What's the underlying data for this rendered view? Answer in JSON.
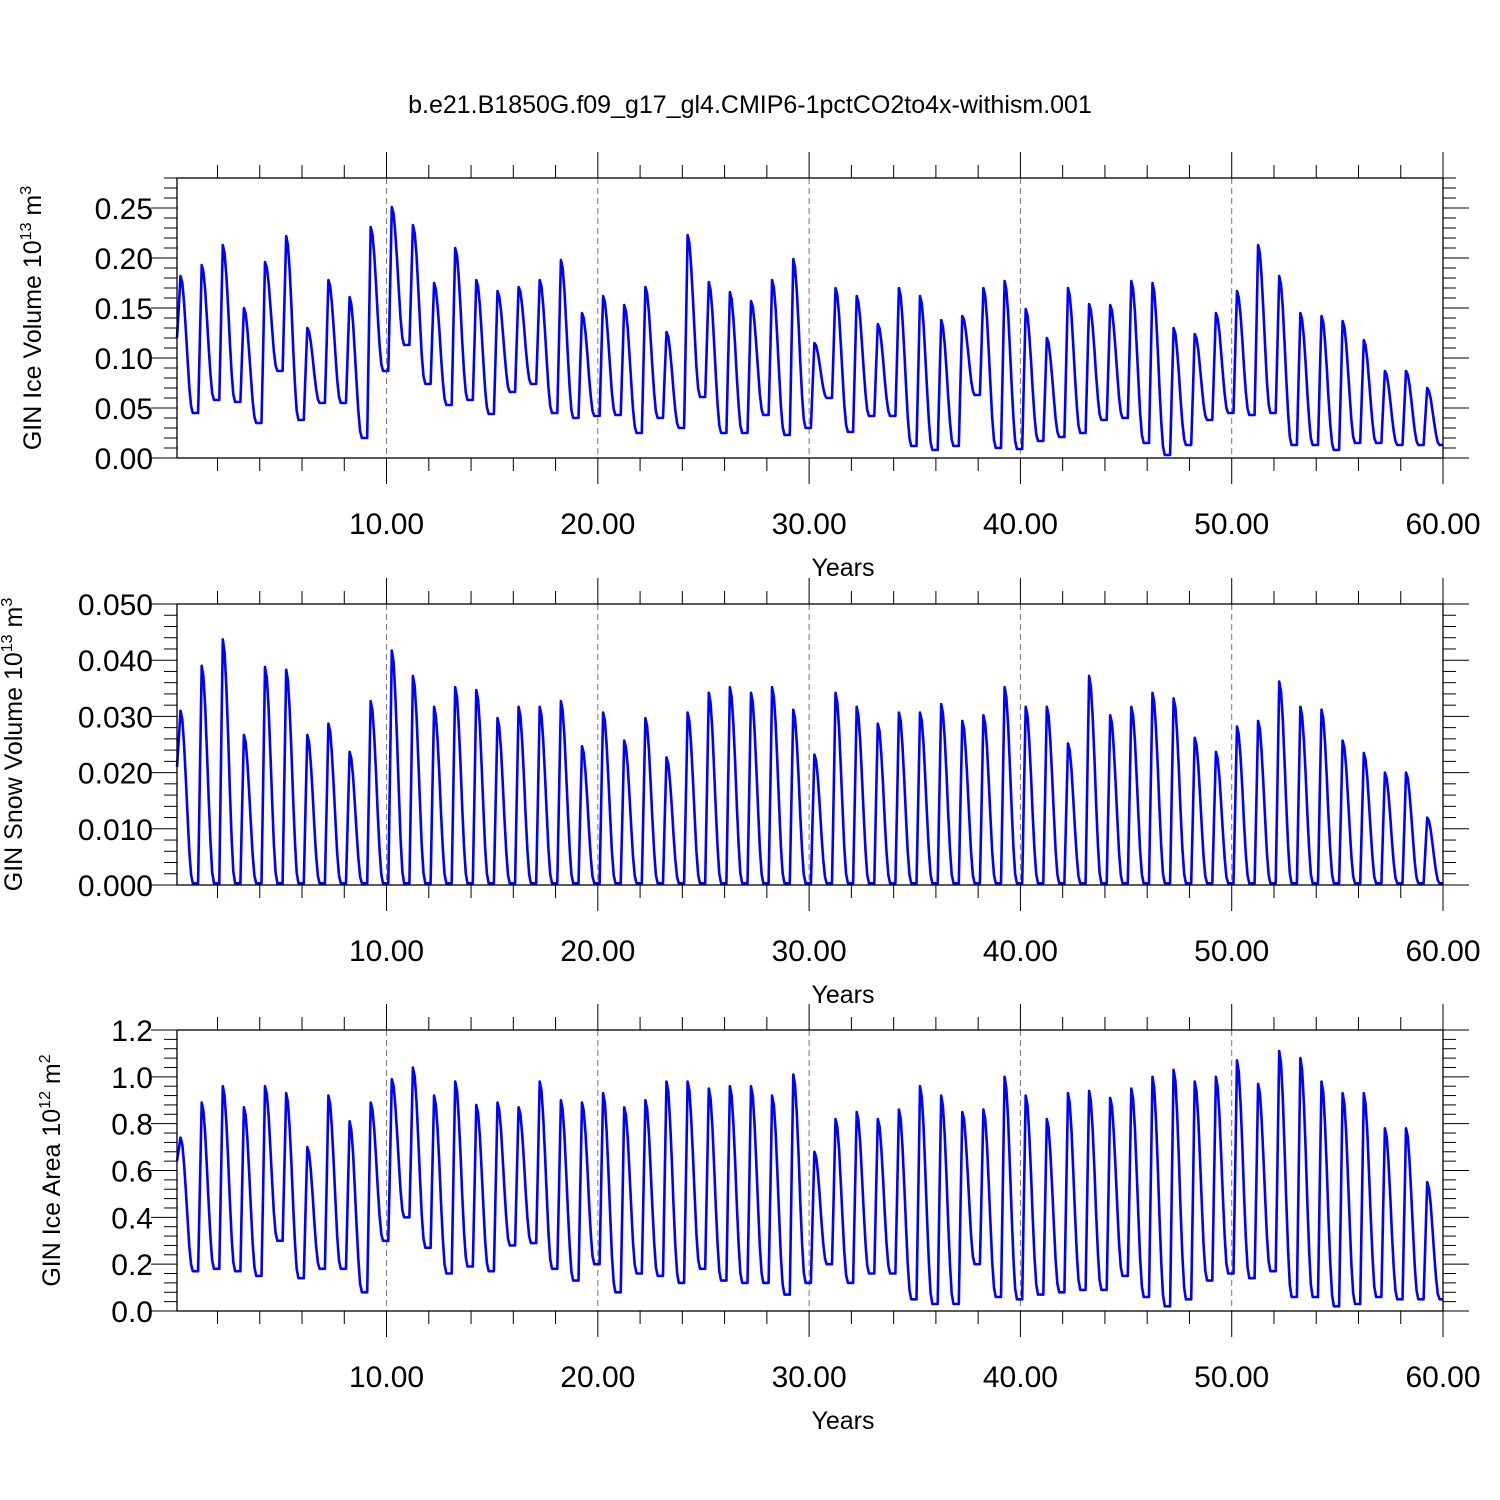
{
  "title": "b.e21.B1850G.f09_g17_gl4.CMIP6-1pctCO2to4x-withism.001",
  "chart_data": [
    {
      "type": "line",
      "xlabel": "Years",
      "ylabel": {
        "base": "GIN Ice Volume 10",
        "exp": "13",
        "unit": " m",
        "unit_exp": "3"
      },
      "xlim": [
        0.0833,
        60
      ],
      "ylim": [
        0,
        0.28
      ],
      "xticks": [
        "10.00",
        "20.00",
        "30.00",
        "40.00",
        "50.00",
        "60.00"
      ],
      "yticks": [
        "0.00",
        "0.05",
        "0.10",
        "0.15",
        "0.20",
        "0.25"
      ],
      "color": "#0000ff",
      "annual_maxima": [
        0.182,
        0.193,
        0.213,
        0.15,
        0.196,
        0.222,
        0.13,
        0.178,
        0.161,
        0.231,
        0.251,
        0.233,
        0.175,
        0.21,
        0.178,
        0.167,
        0.171,
        0.178,
        0.198,
        0.145,
        0.162,
        0.153,
        0.171,
        0.126,
        0.223,
        0.176,
        0.166,
        0.157,
        0.178,
        0.199,
        0.115,
        0.17,
        0.162,
        0.134,
        0.17,
        0.162,
        0.138,
        0.142,
        0.17,
        0.177,
        0.149,
        0.12,
        0.17,
        0.154,
        0.153,
        0.177,
        0.175,
        0.13,
        0.124,
        0.145,
        0.167,
        0.213,
        0.182,
        0.145,
        0.142,
        0.137,
        0.118,
        0.087,
        0.087,
        0.07
      ],
      "annual_minima": [
        0.12,
        0.045,
        0.058,
        0.056,
        0.035,
        0.087,
        0.038,
        0.055,
        0.055,
        0.02,
        0.087,
        0.113,
        0.074,
        0.053,
        0.058,
        0.044,
        0.066,
        0.074,
        0.045,
        0.04,
        0.042,
        0.043,
        0.025,
        0.04,
        0.03,
        0.061,
        0.025,
        0.025,
        0.043,
        0.023,
        0.03,
        0.06,
        0.026,
        0.042,
        0.042,
        0.012,
        0.008,
        0.012,
        0.063,
        0.01,
        0.009,
        0.017,
        0.021,
        0.025,
        0.038,
        0.04,
        0.015,
        0.003,
        0.013,
        0.038,
        0.045,
        0.043,
        0.045,
        0.013,
        0.013,
        0.008,
        0.015,
        0.015,
        0.013,
        0.013
      ]
    },
    {
      "type": "line",
      "xlabel": "Years",
      "ylabel": {
        "base": "GIN Snow Volume 10",
        "exp": "13",
        "unit": " m",
        "unit_exp": "3"
      },
      "xlim": [
        0.0833,
        60
      ],
      "ylim": [
        0,
        0.05
      ],
      "xticks": [
        "10.00",
        "20.00",
        "30.00",
        "40.00",
        "50.00",
        "60.00"
      ],
      "yticks": [
        "0.000",
        "0.010",
        "0.020",
        "0.030",
        "0.040",
        "0.050"
      ],
      "color": "#0000ff",
      "annual_maxima": [
        0.031,
        0.039,
        0.0437,
        0.0267,
        0.0388,
        0.0383,
        0.0267,
        0.0287,
        0.0237,
        0.0327,
        0.0417,
        0.0372,
        0.0317,
        0.0352,
        0.0347,
        0.0297,
        0.0317,
        0.0317,
        0.0327,
        0.0247,
        0.0307,
        0.0257,
        0.0297,
        0.0227,
        0.0307,
        0.0342,
        0.0352,
        0.0342,
        0.0352,
        0.0312,
        0.0232,
        0.0342,
        0.0317,
        0.0287,
        0.0307,
        0.0307,
        0.0322,
        0.0292,
        0.0302,
        0.0352,
        0.0317,
        0.0317,
        0.0252,
        0.0372,
        0.0302,
        0.0317,
        0.0342,
        0.0332,
        0.0262,
        0.0237,
        0.0282,
        0.0292,
        0.0362,
        0.0317,
        0.0312,
        0.0257,
        0.0235,
        0.02,
        0.02,
        0.012
      ],
      "annual_minima": [
        0.021,
        0.0003,
        0.0003,
        0.0003,
        0.0003,
        0.0003,
        0.0003,
        0.0003,
        0.0003,
        0.0003,
        0.0003,
        0.0003,
        0.0003,
        0.0003,
        0.0003,
        0.0003,
        0.0003,
        0.0003,
        0.0003,
        0.0003,
        0.0003,
        0.0003,
        0.0003,
        0.0003,
        0.0003,
        0.0003,
        0.0003,
        0.0003,
        0.0003,
        0.0003,
        0.0003,
        0.0003,
        0.0003,
        0.0003,
        0.0003,
        0.0003,
        0.0003,
        0.0003,
        0.0003,
        0.0003,
        0.0003,
        0.0003,
        0.0003,
        0.0003,
        0.0003,
        0.0003,
        0.0003,
        0.0003,
        0.0003,
        0.0003,
        0.0003,
        0.0003,
        0.0003,
        0.0003,
        0.0003,
        0.0003,
        0.0003,
        0.0003,
        0.0003,
        0.0003
      ]
    },
    {
      "type": "line",
      "xlabel": "Years",
      "ylabel": {
        "base": "GIN Ice Area 10",
        "exp": "12",
        "unit": " m",
        "unit_exp": "2"
      },
      "xlim": [
        0.0833,
        60
      ],
      "ylim": [
        0,
        1.2
      ],
      "xticks": [
        "10.00",
        "20.00",
        "30.00",
        "40.00",
        "50.00",
        "60.00"
      ],
      "yticks": [
        "0.0",
        "0.2",
        "0.4",
        "0.6",
        "0.8",
        "1.0",
        "1.2"
      ],
      "color": "#0000ff",
      "annual_maxima": [
        0.74,
        0.89,
        0.96,
        0.87,
        0.96,
        0.93,
        0.7,
        0.92,
        0.81,
        0.89,
        0.99,
        1.04,
        0.92,
        0.98,
        0.88,
        0.89,
        0.87,
        0.98,
        0.9,
        0.89,
        0.93,
        0.87,
        0.9,
        0.98,
        0.98,
        0.95,
        0.96,
        0.96,
        0.92,
        1.01,
        0.68,
        0.82,
        0.85,
        0.82,
        0.86,
        0.96,
        0.92,
        0.85,
        0.86,
        1.0,
        0.92,
        0.82,
        0.93,
        0.94,
        0.91,
        0.95,
        1.0,
        1.03,
        0.98,
        1.0,
        1.07,
        0.97,
        1.11,
        1.08,
        0.98,
        0.93,
        0.93,
        0.78,
        0.78,
        0.55
      ],
      "annual_minima": [
        0.64,
        0.17,
        0.18,
        0.17,
        0.15,
        0.3,
        0.14,
        0.18,
        0.18,
        0.08,
        0.3,
        0.4,
        0.27,
        0.16,
        0.19,
        0.17,
        0.28,
        0.29,
        0.18,
        0.13,
        0.2,
        0.08,
        0.16,
        0.15,
        0.12,
        0.18,
        0.13,
        0.12,
        0.12,
        0.07,
        0.12,
        0.2,
        0.12,
        0.16,
        0.16,
        0.05,
        0.03,
        0.03,
        0.2,
        0.06,
        0.05,
        0.07,
        0.08,
        0.09,
        0.09,
        0.15,
        0.06,
        0.02,
        0.05,
        0.13,
        0.16,
        0.14,
        0.17,
        0.06,
        0.06,
        0.02,
        0.03,
        0.06,
        0.05,
        0.05
      ]
    }
  ]
}
